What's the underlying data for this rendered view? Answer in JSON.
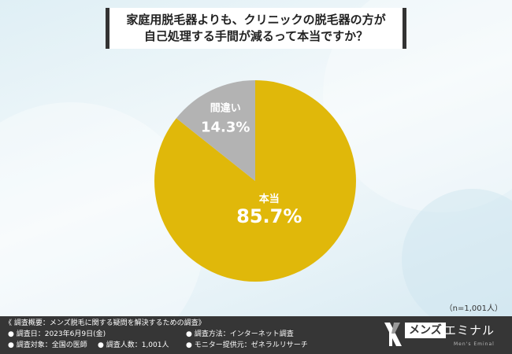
{
  "title": {
    "line1": "家庭用脱毛器よりも、クリニックの脱毛器の方が",
    "line2": "自己処理する手間が減るって本当ですか？"
  },
  "chart_data": {
    "type": "pie",
    "slices": [
      {
        "label": "本当",
        "value": 85.7,
        "display": "85.7%",
        "color": "#e0b80a"
      },
      {
        "label": "間違い",
        "value": 14.3,
        "display": "14.3%",
        "color": "#b3b3b3"
      }
    ]
  },
  "sample_size": "（n=1,001人）",
  "footer": {
    "header": "《 調査概要：メンズ脱毛に関する疑問を解決するための調査》",
    "date": "● 調査日：2023年6月9日(金)",
    "method": "● 調査方法：インターネット調査",
    "target": "● 調査対象：全国の医師",
    "count": "● 調査人数：1,001人",
    "provider": "● モニター提供元：ゼネラルリサーチ"
  },
  "logo": {
    "boxed": "メンズ",
    "rest": "エミナル",
    "sub": "Men's Eminal"
  }
}
